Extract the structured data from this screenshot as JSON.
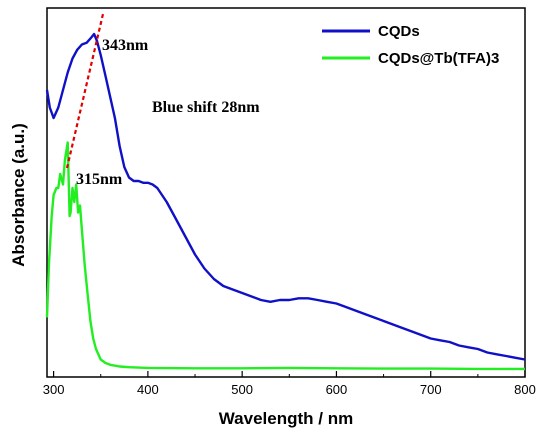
{
  "chart_data": {
    "type": "line",
    "xlabel": "Wavelength / nm",
    "ylabel": "Absorbance (a.u.)",
    "xlim": [
      293,
      800
    ],
    "ylim": [
      0,
      1.0
    ],
    "x_ticks": [
      300,
      400,
      500,
      600,
      700,
      800
    ],
    "y_ticks_labeled": false,
    "grid": false,
    "legend": {
      "position": "top-right"
    },
    "series": [
      {
        "name": "CQDs",
        "color": "#1010c8",
        "x": [
          293,
          296,
          300,
          305,
          310,
          315,
          320,
          325,
          330,
          335,
          340,
          343,
          346,
          350,
          355,
          360,
          365,
          370,
          375,
          380,
          385,
          390,
          395,
          400,
          405,
          410,
          415,
          420,
          430,
          440,
          450,
          460,
          470,
          480,
          490,
          500,
          510,
          520,
          530,
          540,
          550,
          560,
          570,
          580,
          590,
          600,
          610,
          620,
          630,
          640,
          650,
          660,
          670,
          680,
          690,
          700,
          710,
          720,
          730,
          740,
          750,
          760,
          770,
          780,
          790,
          800
        ],
        "y": [
          0.8,
          0.75,
          0.72,
          0.75,
          0.8,
          0.85,
          0.89,
          0.915,
          0.93,
          0.935,
          0.95,
          0.96,
          0.94,
          0.9,
          0.84,
          0.78,
          0.72,
          0.64,
          0.58,
          0.55,
          0.54,
          0.54,
          0.535,
          0.535,
          0.53,
          0.52,
          0.5,
          0.48,
          0.43,
          0.38,
          0.33,
          0.29,
          0.26,
          0.24,
          0.23,
          0.22,
          0.21,
          0.2,
          0.195,
          0.2,
          0.2,
          0.205,
          0.205,
          0.2,
          0.195,
          0.19,
          0.18,
          0.17,
          0.16,
          0.15,
          0.14,
          0.13,
          0.12,
          0.11,
          0.1,
          0.09,
          0.085,
          0.08,
          0.07,
          0.065,
          0.06,
          0.05,
          0.045,
          0.04,
          0.035,
          0.03
        ]
      },
      {
        "name": "CQDs@Tb(TFA)3",
        "color": "#22ee22",
        "x": [
          293,
          295,
          298,
          300,
          303,
          305,
          307,
          310,
          312,
          315,
          317,
          318,
          320,
          322,
          324,
          326,
          328,
          330,
          333,
          336,
          339,
          342,
          345,
          350,
          355,
          360,
          370,
          380,
          400,
          450,
          500,
          550,
          600,
          650,
          700,
          750,
          800
        ],
        "y": [
          0.15,
          0.3,
          0.44,
          0.5,
          0.52,
          0.52,
          0.56,
          0.53,
          0.6,
          0.65,
          0.44,
          0.45,
          0.52,
          0.48,
          0.53,
          0.45,
          0.47,
          0.4,
          0.3,
          0.22,
          0.14,
          0.09,
          0.06,
          0.03,
          0.02,
          0.015,
          0.01,
          0.008,
          0.006,
          0.005,
          0.005,
          0.006,
          0.005,
          0.004,
          0.004,
          0.003,
          0.003
        ]
      }
    ],
    "annotations": {
      "peak1": "343nm",
      "peak2": "315nm",
      "shift": "Blue shift 28nm"
    }
  }
}
